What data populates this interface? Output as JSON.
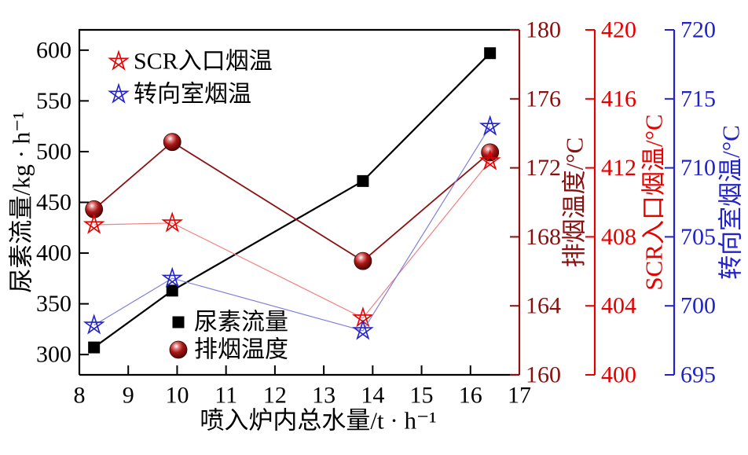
{
  "figure": {
    "background": "#ffffff"
  },
  "chart_data": {
    "type": "line",
    "title": "",
    "xlabel": "喷入炉内总水量/t · h⁻¹",
    "x_axis": {
      "min": 8,
      "max": 17,
      "ticks": [
        8,
        9,
        10,
        11,
        12,
        13,
        14,
        15,
        16,
        17
      ],
      "color": "#000000"
    },
    "x": [
      8.3,
      9.9,
      13.8,
      16.4
    ],
    "y_axes": [
      {
        "id": "urea",
        "side": "left",
        "label": "尿素流量/kg · h⁻¹",
        "min": 280,
        "max": 620,
        "ticks": [
          300,
          350,
          400,
          450,
          500,
          550,
          600
        ],
        "color": "#000000"
      },
      {
        "id": "exhaust",
        "side": "right",
        "label": "排烟温度/°C",
        "min": 160,
        "max": 180,
        "ticks": [
          160,
          164,
          168,
          172,
          176,
          180
        ],
        "color": "#8b0f0f"
      },
      {
        "id": "scr",
        "side": "right",
        "label": "SCR入口烟温/°C",
        "min": 400,
        "max": 420,
        "ticks": [
          400,
          404,
          408,
          412,
          416,
          420
        ],
        "color": "#e60000"
      },
      {
        "id": "turn",
        "side": "right",
        "label": "转向室烟温/°C",
        "min": 695,
        "max": 720,
        "ticks": [
          695,
          700,
          705,
          710,
          715,
          720
        ],
        "color": "#2222cc"
      }
    ],
    "series": [
      {
        "name": "尿素流量",
        "axis": "urea",
        "marker": "square",
        "marker_color": "#000000",
        "line_color": "#000000",
        "line_width": 2.2,
        "values": [
          307,
          363,
          471,
          597
        ]
      },
      {
        "name": "排烟温度",
        "axis": "exhaust",
        "marker": "sphere",
        "marker_color": "#8b0f0f",
        "line_color": "#8b1212",
        "line_width": 1.8,
        "values": [
          169.6,
          173.5,
          166.6,
          172.9
        ]
      },
      {
        "name": "SCR入口烟温",
        "axis": "scr",
        "marker": "star",
        "marker_color": "#e60000",
        "line_color": "#f08080",
        "line_width": 1.2,
        "values": [
          408.7,
          408.8,
          403.3,
          412.4
        ]
      },
      {
        "name": "转向室烟温",
        "axis": "turn",
        "marker": "star",
        "marker_color": "#2222cc",
        "line_color": "#8080dd",
        "line_width": 1.2,
        "values": [
          698.6,
          702.0,
          698.2,
          713.0
        ]
      }
    ],
    "legends": [
      {
        "position": "top-left-inside",
        "items": [
          "SCR入口烟温",
          "转向室烟温"
        ]
      },
      {
        "position": "bottom-mid-inside",
        "items": [
          "尿素流量",
          "排烟温度"
        ]
      }
    ],
    "legend_text_color": "#000000"
  }
}
